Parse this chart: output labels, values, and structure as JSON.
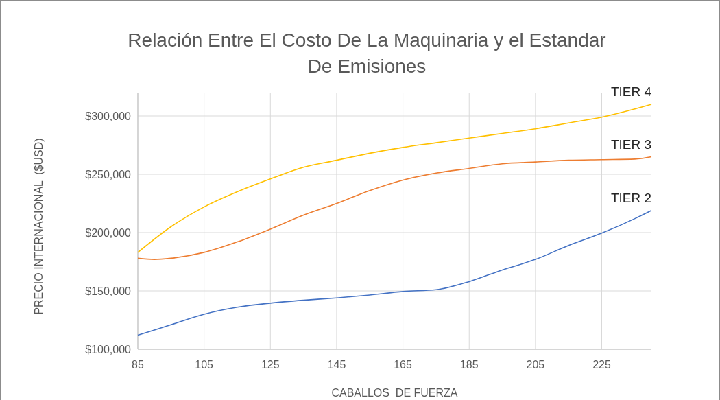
{
  "chart_data": {
    "type": "line",
    "title": "Relación Entre El Costo De La Maquinaria y el Estandar De Emisiones",
    "xlabel": "CABALLOS  DE FUERZA",
    "ylabel": "PRECIO INTERNACIONAL  ($USD)",
    "x": [
      85,
      95,
      105,
      115,
      125,
      135,
      145,
      155,
      165,
      175,
      185,
      195,
      205,
      215,
      225,
      235,
      240
    ],
    "series": [
      {
        "name": "TIER 2",
        "color": "#4472c4",
        "values": [
          112000,
          121000,
          130000,
          136000,
          139500,
          142000,
          144000,
          146500,
          149500,
          151000,
          158000,
          168000,
          177000,
          189000,
          199500,
          212000,
          219000
        ]
      },
      {
        "name": "TIER 3",
        "color": "#ed7d31",
        "x": [
          85,
          90,
          95,
          105,
          115,
          125,
          135,
          145,
          155,
          165,
          175,
          185,
          195,
          205,
          215,
          225,
          235,
          240
        ],
        "values": [
          178000,
          177000,
          178000,
          183000,
          192000,
          203000,
          215000,
          225000,
          236000,
          245000,
          251000,
          255000,
          259000,
          260500,
          262000,
          262500,
          263000,
          265000
        ]
      },
      {
        "name": "TIER 4",
        "color": "#ffc000",
        "values": [
          183000,
          205000,
          222000,
          235000,
          246000,
          256000,
          262000,
          268000,
          273000,
          277000,
          281000,
          285000,
          289000,
          294000,
          299000,
          306000,
          310000
        ]
      }
    ],
    "xlim": [
      85,
      240
    ],
    "xticks": [
      85,
      105,
      125,
      145,
      165,
      185,
      205,
      225
    ],
    "ylim": [
      100000,
      320000
    ],
    "yticks": [
      {
        "value": 100000,
        "label": "$100,000"
      },
      {
        "value": 150000,
        "label": "$150,000"
      },
      {
        "value": 200000,
        "label": "$200,000"
      },
      {
        "value": 250000,
        "label": "$250,000"
      },
      {
        "value": 300000,
        "label": "$300,000"
      }
    ],
    "grid": true,
    "marker": "none",
    "line_style": "solid"
  }
}
